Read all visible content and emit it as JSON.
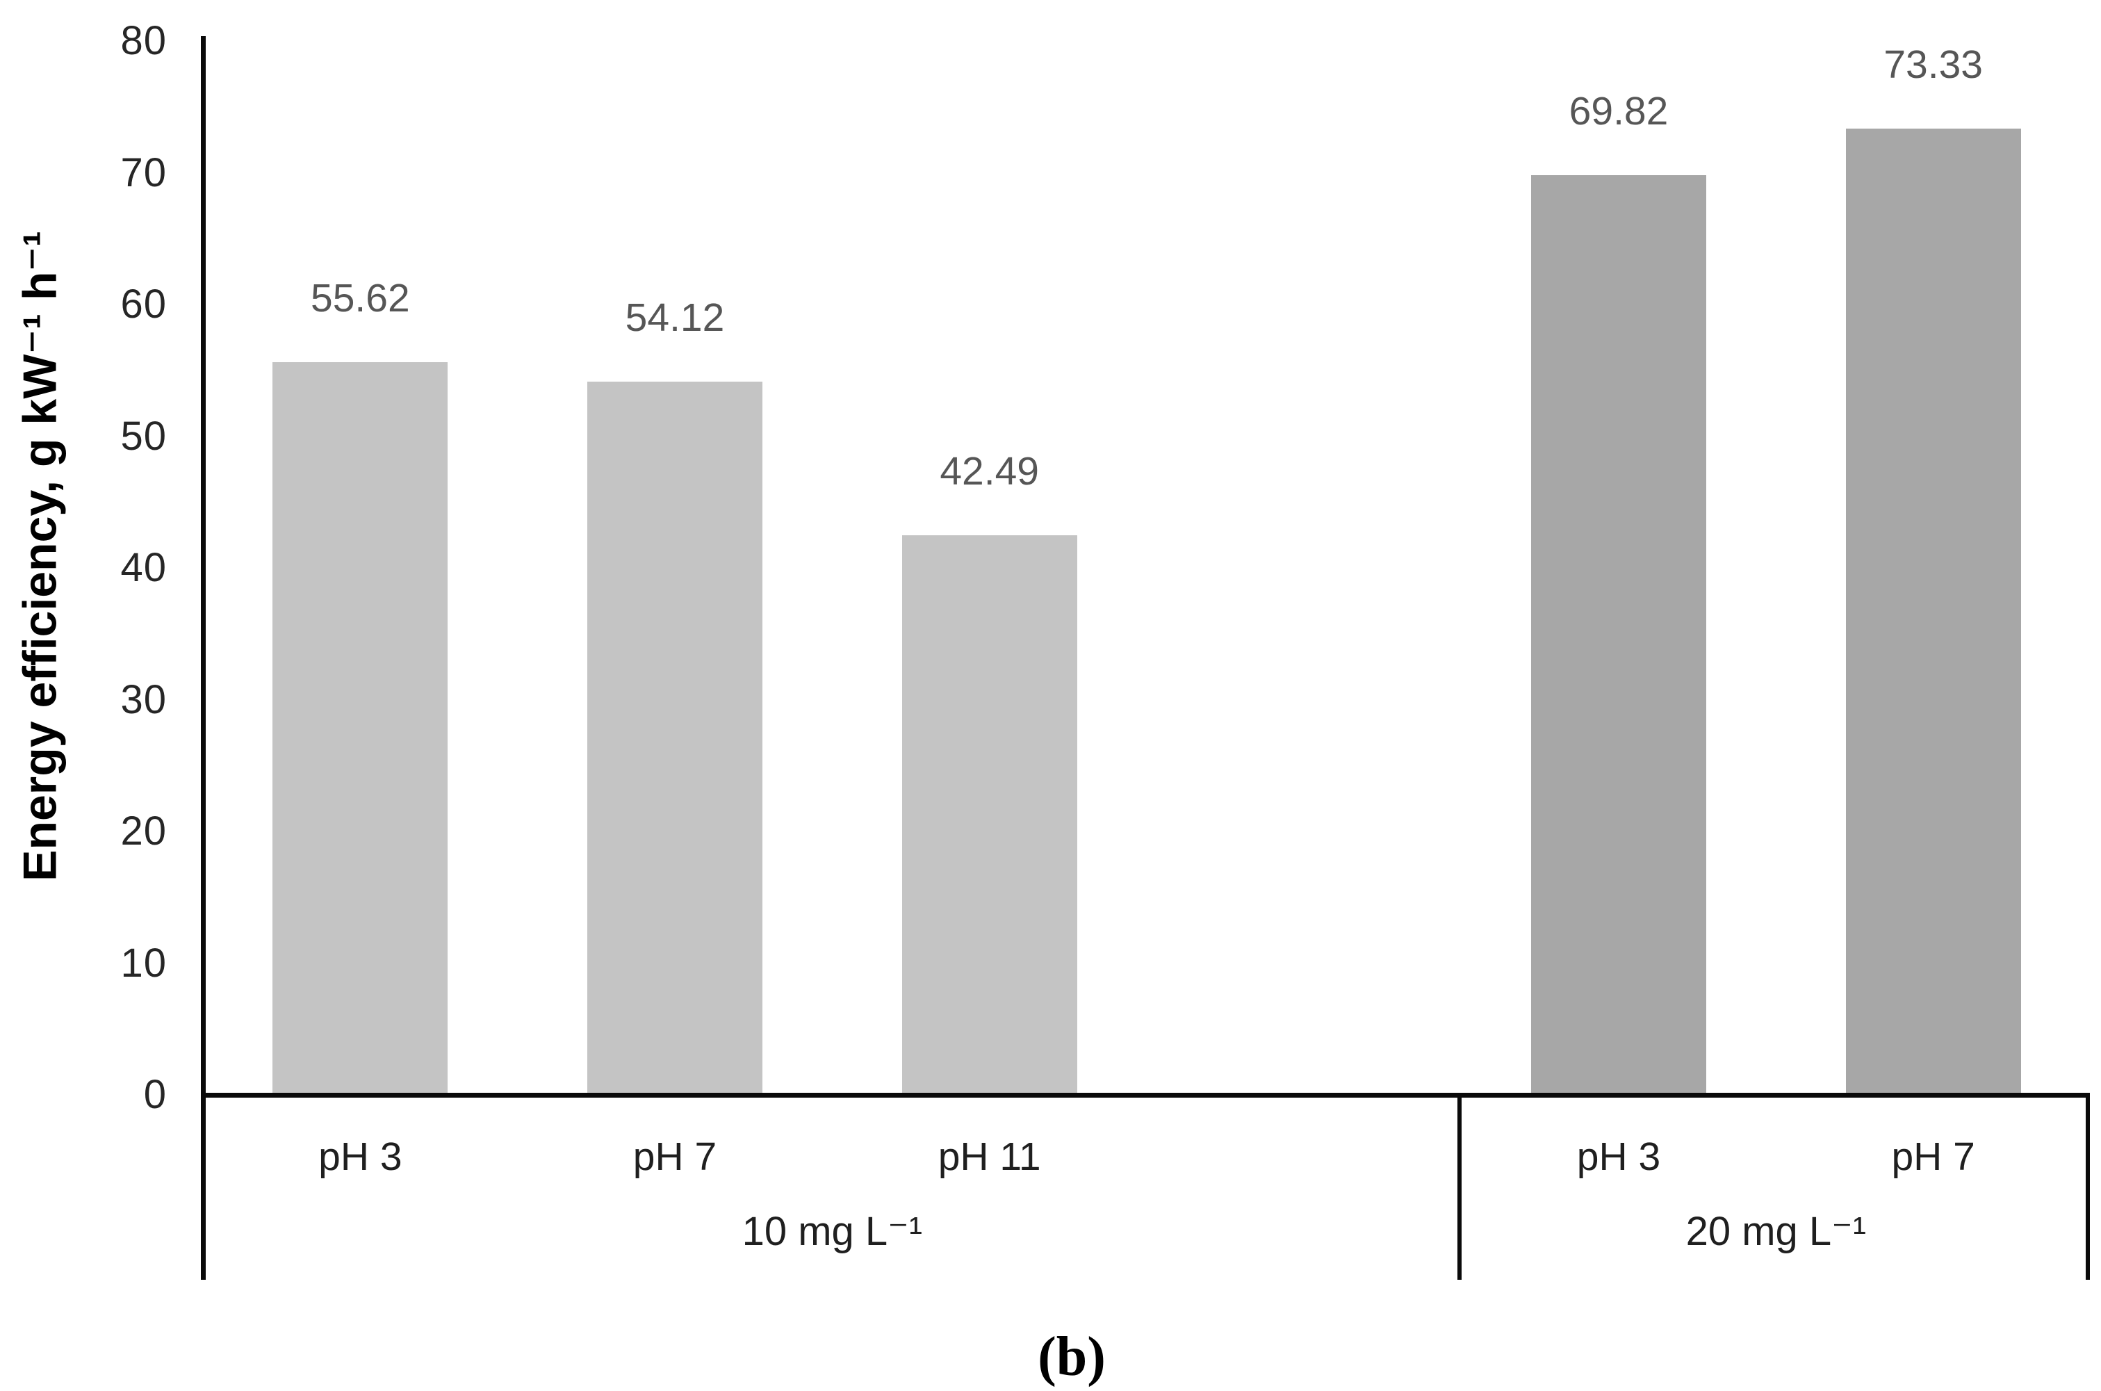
{
  "figure_label": "(b)",
  "colors": {
    "bar_group1": "#c4c4c4",
    "bar_group2": "#a7a7a7",
    "axis_line": "#0a0a0a",
    "tick_text": "#262626",
    "value_text": "#565656",
    "category_text": "#1f1f1f"
  },
  "chart_data": {
    "type": "bar",
    "title": "",
    "xlabel": "",
    "ylabel": "Energy efficiency, g kW⁻¹ h⁻¹",
    "ylim": [
      0,
      80
    ],
    "yticks": [
      0,
      10,
      20,
      30,
      40,
      50,
      60,
      70,
      80
    ],
    "grid": false,
    "legend": false,
    "value_label_decimals": 2,
    "groups": [
      {
        "label": "10 mg L⁻¹",
        "categories": [
          "pH 3",
          "pH 7",
          "pH 11"
        ],
        "values": [
          55.62,
          54.12,
          42.49
        ]
      },
      {
        "label": "20 mg L⁻¹",
        "categories": [
          "pH 3",
          "pH 7"
        ],
        "values": [
          69.82,
          73.33
        ]
      }
    ]
  }
}
